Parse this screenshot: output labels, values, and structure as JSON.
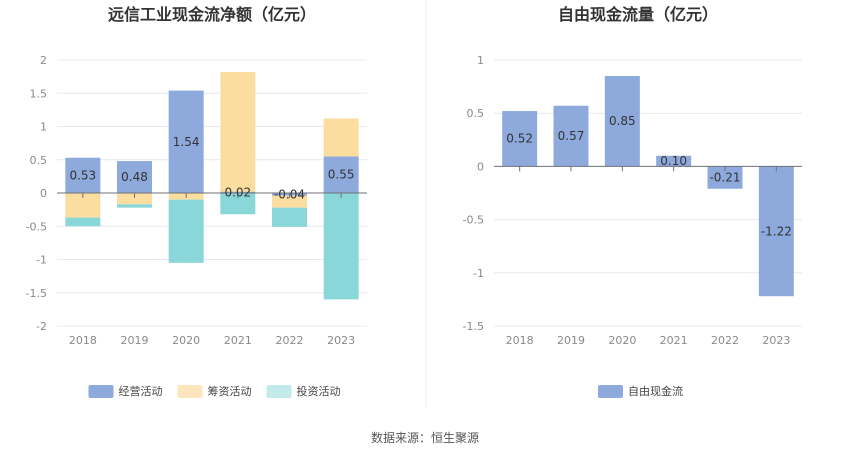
{
  "source": "数据来源：恒生聚源",
  "chart_data": [
    {
      "type": "bar",
      "stacked": true,
      "title": "远信工业现金流净额（亿元）",
      "categories": [
        "2018",
        "2019",
        "2020",
        "2021",
        "2022",
        "2023"
      ],
      "ylim": [
        -2,
        2
      ],
      "yticks": [
        "2",
        "1.5",
        "1",
        "0.5",
        "0",
        "-0.5",
        "-1",
        "-1.5",
        "-2"
      ],
      "ytick_values": [
        2,
        1.5,
        1,
        0.5,
        0,
        -0.5,
        -1,
        -1.5,
        -2
      ],
      "label_series": 0,
      "series": [
        {
          "name": "经营活动",
          "color": "#8eaadc",
          "values": [
            0.53,
            0.48,
            1.54,
            0.02,
            -0.04,
            0.55
          ],
          "labels": [
            "0.53",
            "0.48",
            "1.54",
            "0.02",
            "-0.04",
            "0.55"
          ]
        },
        {
          "name": "筹资活动",
          "color": "#fcdda0",
          "values": [
            -0.37,
            -0.17,
            -0.1,
            1.8,
            -0.18,
            0.57
          ]
        },
        {
          "name": "投资活动",
          "color": "#8ad7d9",
          "values": [
            -0.13,
            -0.05,
            -0.95,
            -0.32,
            -0.29,
            -1.6
          ]
        }
      ],
      "legend_colors": [
        "#8eaadc",
        "#fde6be",
        "#c2eaea"
      ]
    },
    {
      "type": "bar",
      "title": "自由现金流量（亿元）",
      "categories": [
        "2018",
        "2019",
        "2020",
        "2021",
        "2022",
        "2023"
      ],
      "ylim": [
        -1.5,
        1
      ],
      "yticks": [
        "1",
        "0.5",
        "0",
        "-0.5",
        "-1",
        "-1.5"
      ],
      "ytick_values": [
        1,
        0.5,
        0,
        -0.5,
        -1,
        -1.5
      ],
      "label_series": 0,
      "series": [
        {
          "name": "自由现金流",
          "color": "#8eaadc",
          "values": [
            0.52,
            0.57,
            0.85,
            0.1,
            -0.21,
            -1.22
          ],
          "labels": [
            "0.52",
            "0.57",
            "0.85",
            "0.10",
            "-0.21",
            "-1.22"
          ]
        }
      ],
      "legend_colors": [
        "#8eaadc"
      ]
    }
  ]
}
